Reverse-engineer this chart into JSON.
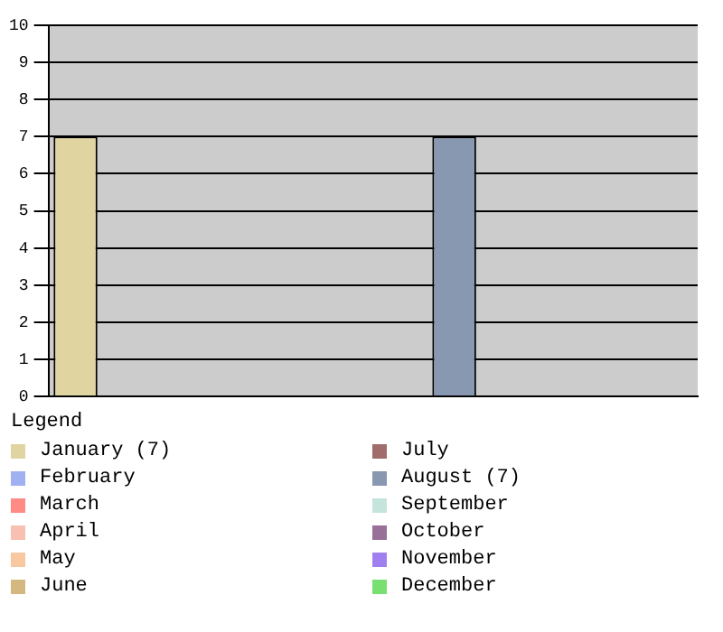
{
  "chart_data": {
    "type": "bar",
    "categories": [
      null,
      null,
      null,
      null,
      null,
      null,
      null,
      null,
      null,
      null,
      null,
      null
    ],
    "legend_title": "Legend",
    "legend": "bottom",
    "grid": "y",
    "tick_labels": "y",
    "ylim": [
      0,
      10
    ],
    "yticks": [
      0,
      1,
      2,
      3,
      4,
      5,
      6,
      7,
      8,
      9,
      10
    ],
    "series": [
      {
        "name": "January (7)",
        "color": "#e0d4a0",
        "values": [
          7,
          null,
          null,
          null,
          null,
          null,
          null,
          null,
          null,
          null,
          null,
          null
        ]
      },
      {
        "name": "February",
        "color": "#a0b0f0",
        "values": [
          null,
          0,
          null,
          null,
          null,
          null,
          null,
          null,
          null,
          null,
          null,
          null
        ]
      },
      {
        "name": "March",
        "color": "#ff8c84",
        "values": [
          null,
          null,
          0,
          null,
          null,
          null,
          null,
          null,
          null,
          null,
          null,
          null
        ]
      },
      {
        "name": "April",
        "color": "#f8c0b0",
        "values": [
          null,
          null,
          null,
          0,
          null,
          null,
          null,
          null,
          null,
          null,
          null,
          null
        ]
      },
      {
        "name": "May",
        "color": "#f8c8a0",
        "values": [
          null,
          null,
          null,
          null,
          0,
          null,
          null,
          null,
          null,
          null,
          null,
          null
        ]
      },
      {
        "name": "June",
        "color": "#d4b880",
        "values": [
          null,
          null,
          null,
          null,
          null,
          0,
          null,
          null,
          null,
          null,
          null,
          null
        ]
      },
      {
        "name": "July",
        "color": "#a06c6c",
        "values": [
          null,
          null,
          null,
          null,
          null,
          null,
          0,
          null,
          null,
          null,
          null,
          null
        ]
      },
      {
        "name": "August (7)",
        "color": "#8898b0",
        "values": [
          null,
          null,
          null,
          null,
          null,
          null,
          null,
          7,
          null,
          null,
          null,
          null
        ]
      },
      {
        "name": "September",
        "color": "#c4e4dc",
        "values": [
          null,
          null,
          null,
          null,
          null,
          null,
          null,
          null,
          0,
          null,
          null,
          null
        ]
      },
      {
        "name": "October",
        "color": "#987098",
        "values": [
          null,
          null,
          null,
          null,
          null,
          null,
          null,
          null,
          null,
          0,
          null,
          null
        ]
      },
      {
        "name": "November",
        "color": "#a080f0",
        "values": [
          null,
          null,
          null,
          null,
          null,
          null,
          null,
          null,
          null,
          null,
          0,
          null
        ]
      },
      {
        "name": "December",
        "color": "#78e070",
        "values": [
          null,
          null,
          null,
          null,
          null,
          null,
          null,
          null,
          null,
          null,
          null,
          0
        ]
      }
    ]
  }
}
